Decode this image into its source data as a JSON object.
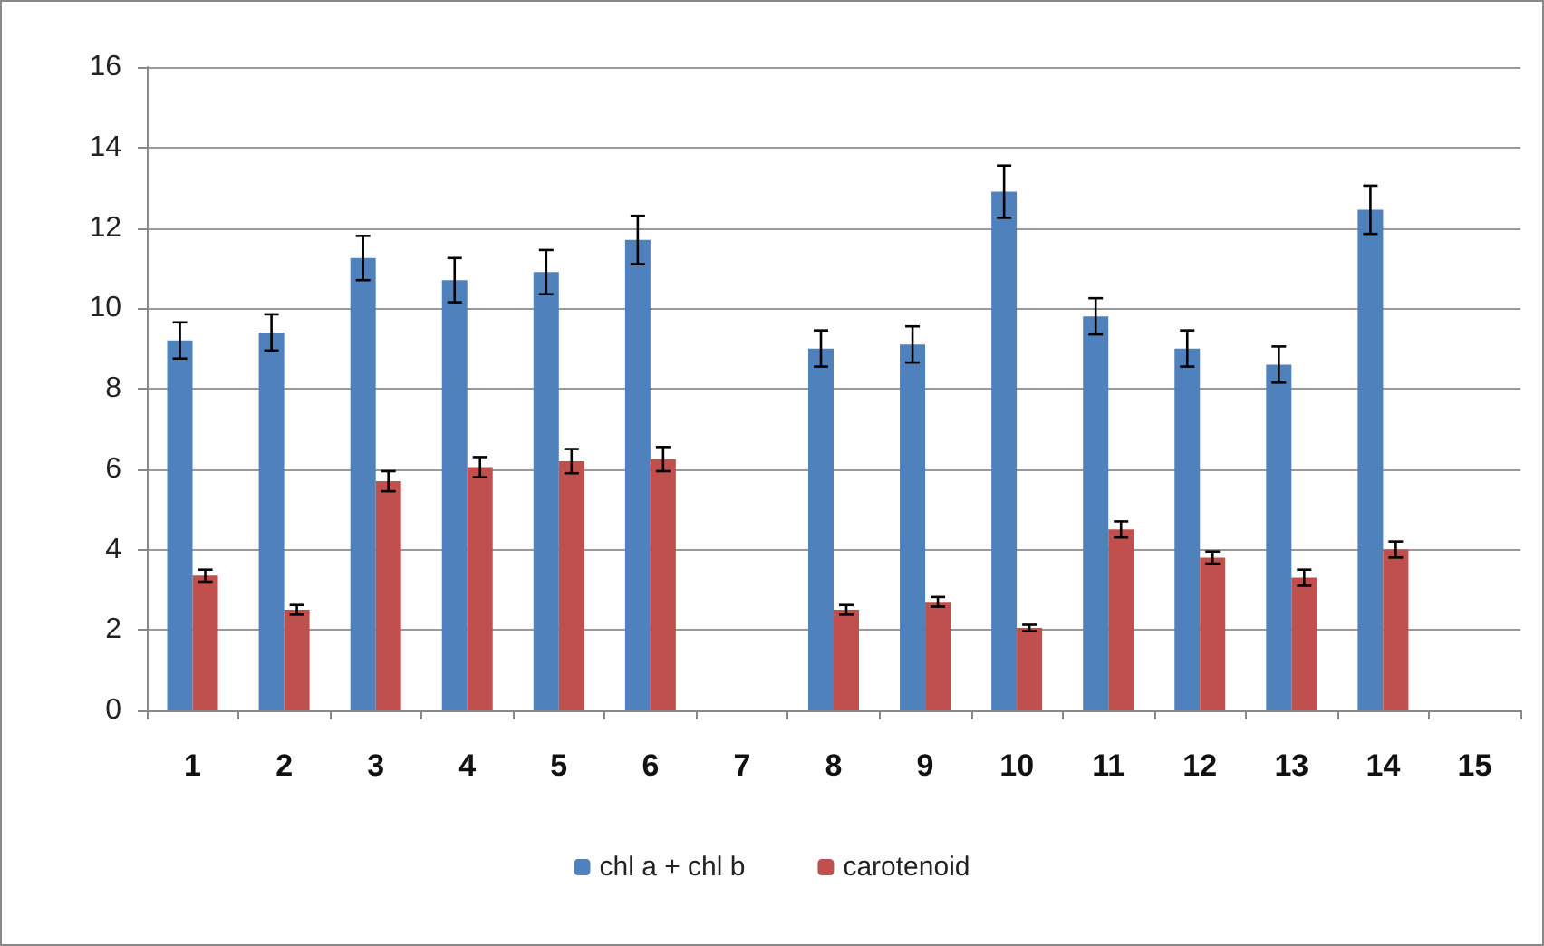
{
  "chart_data": {
    "type": "bar",
    "categories": [
      "1",
      "2",
      "3",
      "4",
      "5",
      "6",
      "7",
      "8",
      "9",
      "10",
      "11",
      "12",
      "13",
      "14",
      "15"
    ],
    "series": [
      {
        "name": "chl a + chl b",
        "color": "#4f81bd",
        "values": [
          9.2,
          9.4,
          11.25,
          10.7,
          10.9,
          11.7,
          null,
          9.0,
          9.1,
          12.9,
          9.8,
          9.0,
          8.6,
          12.45,
          null
        ],
        "errors": [
          0.45,
          0.45,
          0.55,
          0.55,
          0.55,
          0.6,
          null,
          0.45,
          0.45,
          0.65,
          0.45,
          0.45,
          0.45,
          0.6,
          null
        ]
      },
      {
        "name": "carotenoid",
        "color": "#c0504d",
        "values": [
          3.35,
          2.5,
          5.7,
          6.05,
          6.2,
          6.25,
          null,
          2.5,
          2.7,
          2.05,
          4.5,
          3.8,
          3.3,
          4.0,
          null
        ],
        "errors": [
          0.15,
          0.12,
          0.25,
          0.25,
          0.3,
          0.3,
          null,
          0.12,
          0.12,
          0.08,
          0.2,
          0.15,
          0.2,
          0.2,
          null
        ]
      }
    ],
    "ylim": [
      0,
      16
    ],
    "yticks": [
      0,
      2,
      4,
      6,
      8,
      10,
      12,
      14,
      16
    ],
    "grid": "y",
    "legend": "bottom"
  }
}
